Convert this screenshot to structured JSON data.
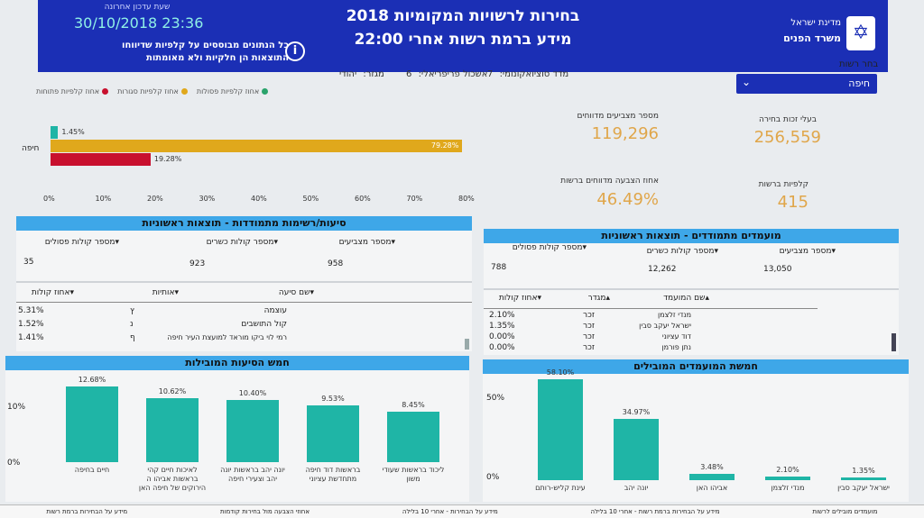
{
  "header": {
    "title_line1": "בחירות לרשויות המקומיות 2018",
    "title_line2": "מידע ברמת רשות אחרי 22:00",
    "update_label": "שעת עדכון אחרונה",
    "update_time": "30/10/2018 23:36",
    "note": "כל הנתונים מבוססים על קלפיות שדיווחו התוצאות הן חלקיות ולא מאומתות",
    "info_symbol": "i",
    "state": "מדינת ישראל",
    "ministry": "משרד הפנים",
    "emblem_icon": "menorah-emblem-icon",
    "accent": "#1b2fb5"
  },
  "stats": {
    "socio_label": "מדד סוציואקונומי:",
    "socio_value": "7",
    "periph_label": "אשכול פריפריאלי:",
    "periph_value": "6",
    "sector_label": "מגזר:",
    "sector_value": "יהודי"
  },
  "authority_select": {
    "label": "בחר רשות",
    "value": "חיפה"
  },
  "legend": [
    {
      "label": "אחוז קלפיות פסולות",
      "color": "#2aa36b"
    },
    {
      "label": "אחוז קלפיות סגורות",
      "color": "#e0a81c"
    },
    {
      "label": "אחוז קלפיות פתוחות",
      "color": "#c8102e"
    }
  ],
  "kpis": {
    "eligible_label": "בעלי זכות בחירה",
    "eligible_value": "256,559",
    "voters_label": "מספר מצביעים מדווחים",
    "voters_value": "119,296",
    "ballots_label": "קלפיות ברשות",
    "ballots_value": "415",
    "turnout_label": "אחוז הצבעה מדווחים ברשות",
    "turnout_value": "46.49%"
  },
  "hbar_chart": {
    "city": "חיפה",
    "ticks": [
      "0%",
      "10%",
      "20%",
      "30%",
      "40%",
      "50%",
      "60%",
      "70%",
      "80%"
    ],
    "bars": [
      {
        "label": "1.45%",
        "value": 1.45,
        "color": "#1fb5a6"
      },
      {
        "label": "79.28%",
        "value": 79.28,
        "color": "#e0a81c"
      },
      {
        "label": "19.28%",
        "value": 19.28,
        "color": "#c8102e"
      }
    ]
  },
  "lists_panel": {
    "title": "סיעות/רשימות מתמודדות - תוצאות ראשוניות",
    "voters_label": "מספר מצביעים",
    "voters_value": "958",
    "valid_label": "מספר קולות כשרים",
    "valid_value": "923",
    "invalid_label": "מספר קולות פסולים",
    "invalid_value": "35",
    "cols": [
      "שם סיעה",
      "אותיות",
      "אחוז קולות"
    ],
    "rows": [
      {
        "name": "עוצמה",
        "letters": "ץ",
        "pct": "5.31%"
      },
      {
        "name": "קול התושבים",
        "letters": "נ",
        "pct": "1.52%"
      },
      {
        "name": "רמי לוי ביקו מוראד למועצת העיר חיפה",
        "letters": "ף",
        "pct": "1.41%"
      }
    ]
  },
  "candidates_panel": {
    "title": "מועמדים מתמודדים - תוצאות ראשוניות",
    "voters_label": "מספר מצביעים",
    "voters_value": "13,050",
    "valid_label": "מספר קולות כשרים",
    "valid_value": "12,262",
    "invalid_label": "מספר קולות פסולים",
    "invalid_value": "788",
    "cols": [
      "שם המועמד",
      "מגדר",
      "אחוז קולות"
    ],
    "rows": [
      {
        "name": "מנדי זלצמן",
        "gender": "זכר",
        "pct": "2.10%"
      },
      {
        "name": "ישראל יעקב סבין",
        "gender": "זכר",
        "pct": "1.35%"
      },
      {
        "name": "דוד עציוני",
        "gender": "זכר",
        "pct": "0.00%"
      },
      {
        "name": "נתן פורמן",
        "gender": "זכר",
        "pct": "0.00%"
      }
    ]
  },
  "top_lists_chart": {
    "title": "חמש הסיעות המובילות",
    "y_ticks": [
      "10%",
      "0%"
    ],
    "ylim": [
      0,
      14
    ],
    "categories": [
      "חיים בחיפה",
      "לאיכות חיים קהי בראשות אביהו ה הירוקים של חיפה האן",
      "יונה יהב בראשות יונה יהב וצעירי חיפה",
      "בראשות דוד חיפה מתחדשת עציוני",
      "ליכוד בראשות שעודי משון"
    ],
    "values": [
      12.68,
      10.62,
      10.4,
      9.53,
      8.45
    ],
    "labels": [
      "12.68%",
      "10.62%",
      "10.40%",
      "9.53%",
      "8.45%"
    ]
  },
  "top_candidates_chart": {
    "title": "חמשת המועמדים המובילים",
    "y_ticks": [
      "50%",
      "0%"
    ],
    "ylim": [
      0,
      60
    ],
    "categories": [
      "עינת קליש-רותם",
      "יונה יהב",
      "אביהו האן",
      "מנדי זלצמן",
      "ישראל יעקב סבין"
    ],
    "values": [
      58.1,
      34.97,
      3.48,
      2.1,
      1.35
    ],
    "labels": [
      "58.10%",
      "34.97%",
      "3.48%",
      "2.10%",
      "1.35%"
    ]
  },
  "bottom_tabs": [
    "מועמדים מובילים לרשות",
    "מידע על הבחירות ברמת רשות - אחרי 10 בלילה",
    "מידע על הבחירות - אחרי 10 בלילה",
    "אחוזי הצבעה מול בחירות קודמות",
    "מידע על הבחירות ברמת רשות"
  ]
}
